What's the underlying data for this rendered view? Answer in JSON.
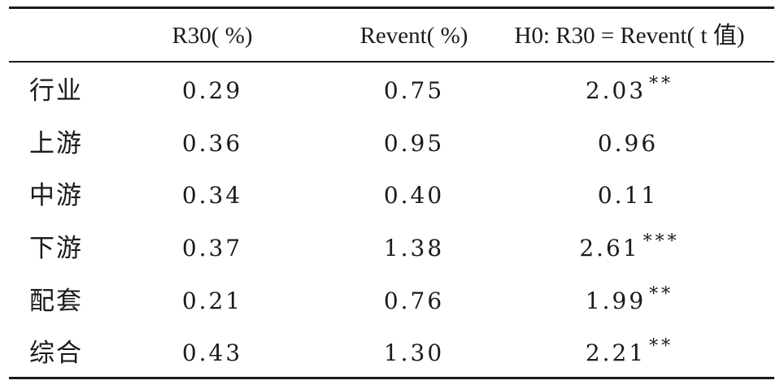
{
  "table": {
    "headers": [
      "",
      "R30( %)",
      "Revent( %)",
      "H0: R30 = Revent( t 值)"
    ],
    "rows": [
      {
        "label": "行业",
        "r30": "0.29",
        "revent": "0.75",
        "t": "2.03",
        "sig": "**"
      },
      {
        "label": "上游",
        "r30": "0.36",
        "revent": "0.95",
        "t": "0.96",
        "sig": ""
      },
      {
        "label": "中游",
        "r30": "0.34",
        "revent": "0.40",
        "t": "0.11",
        "sig": ""
      },
      {
        "label": "下游",
        "r30": "0.37",
        "revent": "1.38",
        "t": "2.61",
        "sig": "***"
      },
      {
        "label": "配套",
        "r30": "0.21",
        "revent": "0.76",
        "t": "1.99",
        "sig": "**"
      },
      {
        "label": "综合",
        "r30": "0.43",
        "revent": "1.30",
        "t": "2.21",
        "sig": "**"
      }
    ]
  }
}
